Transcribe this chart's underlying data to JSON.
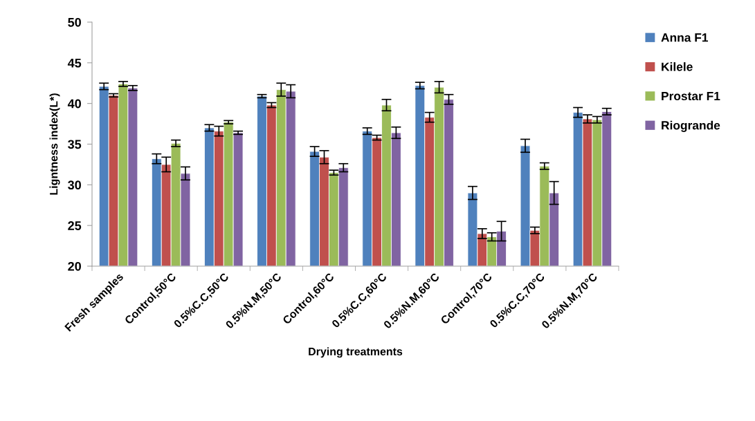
{
  "chart_data": {
    "type": "bar",
    "xlabel": "Drying treatments",
    "ylabel": "Ligntness index(L*)",
    "categories": [
      "Fresh samples",
      "Control,50°C",
      "0.5%C.C,50°C",
      "0.5%N.M,50°C",
      "Control,60°C",
      "0.5%C.C,60°C",
      "0.5%N.M,60°C",
      "Control,70°C",
      "0.5%C.C,70°C",
      "0.5%N.M,70°C"
    ],
    "series": [
      {
        "name": "Anna F1",
        "color": "#4f81bd",
        "values": [
          42.1,
          33.2,
          37.0,
          40.9,
          34.1,
          36.6,
          42.2,
          29.0,
          34.8,
          38.9
        ],
        "errors": [
          0.4,
          0.6,
          0.4,
          0.2,
          0.6,
          0.4,
          0.4,
          0.8,
          0.8,
          0.6
        ]
      },
      {
        "name": "Kilele",
        "color": "#c0504d",
        "values": [
          41.0,
          32.5,
          36.6,
          39.8,
          33.4,
          35.8,
          38.3,
          24.0,
          24.4,
          38.1
        ],
        "errors": [
          0.2,
          0.9,
          0.6,
          0.3,
          0.8,
          0.3,
          0.6,
          0.6,
          0.4,
          0.5
        ]
      },
      {
        "name": "Prostar F1",
        "color": "#9bbb59",
        "values": [
          42.4,
          35.1,
          37.7,
          41.7,
          31.5,
          39.8,
          42.0,
          23.6,
          32.3,
          38.0
        ],
        "errors": [
          0.3,
          0.4,
          0.2,
          0.8,
          0.3,
          0.7,
          0.7,
          0.5,
          0.4,
          0.4
        ]
      },
      {
        "name": "Riogrande",
        "color": "#8064a2",
        "values": [
          41.9,
          31.4,
          36.4,
          41.5,
          32.1,
          36.4,
          40.5,
          24.3,
          29.0,
          39.0
        ],
        "errors": [
          0.3,
          0.8,
          0.2,
          0.8,
          0.5,
          0.7,
          0.6,
          1.2,
          1.4,
          0.4
        ]
      }
    ],
    "ylim": [
      20,
      50
    ],
    "yticks": [
      20,
      25,
      30,
      35,
      40,
      45,
      50
    ],
    "grid": false,
    "legend": "top right"
  }
}
